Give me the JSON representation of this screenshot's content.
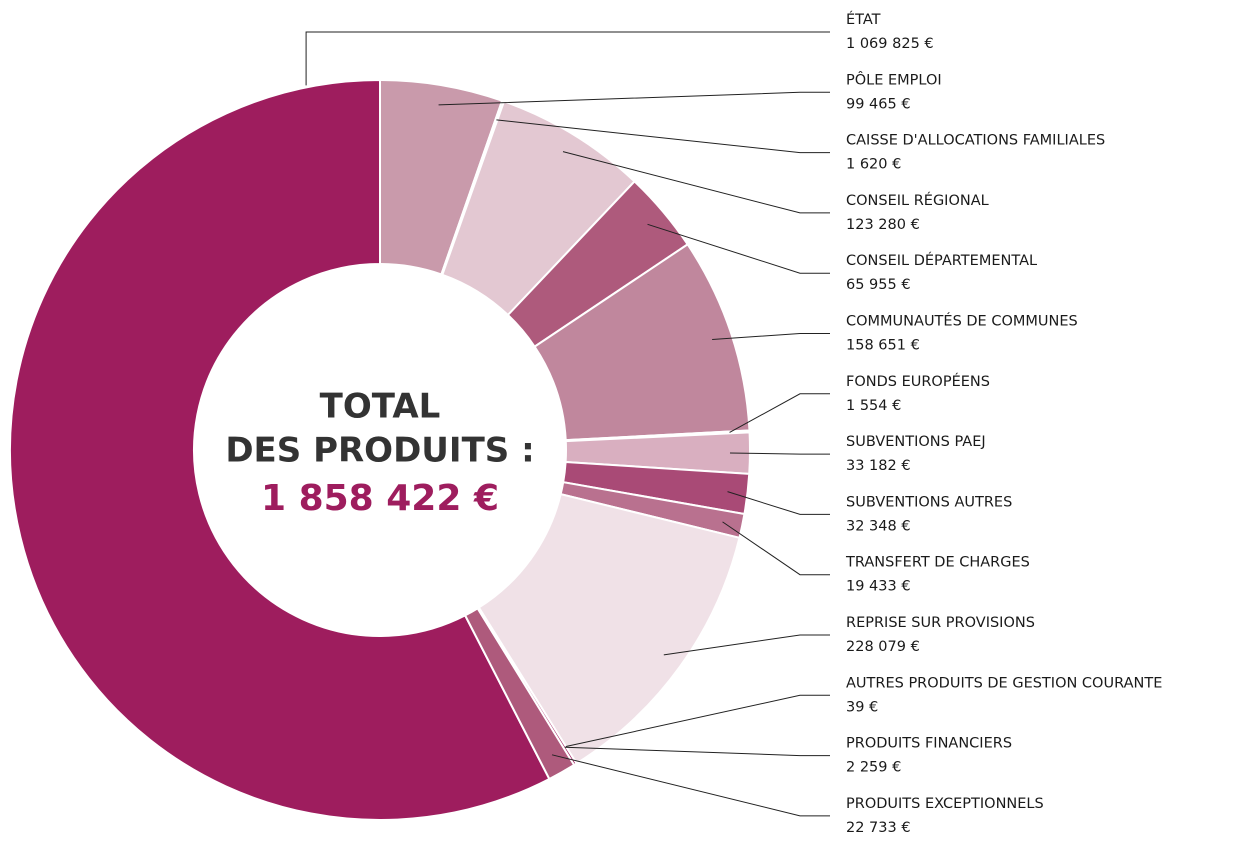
{
  "chart_data": {
    "type": "donut",
    "categories": [
      "ÉTAT",
      "PÔLE EMPLOI",
      "CAISSE D'ALLOCATIONS FAMILIALES",
      "CONSEIL RÉGIONAL",
      "CONSEIL DÉPARTEMENTAL",
      "COMMUNAUTÉS DE COMMUNES",
      "FONDS EUROPÉENS",
      "SUBVENTIONS PAEJ",
      "SUBVENTIONS AUTRES",
      "TRANSFERT DE CHARGES",
      "REPRISE SUR PROVISIONS",
      "AUTRES PRODUITS DE GESTION COURANTE",
      "PRODUITS FINANCIERS",
      "PRODUITS EXCEPTIONNELS"
    ],
    "values": [
      1069825,
      99465,
      1620,
      123280,
      65955,
      158651,
      1554,
      33182,
      32348,
      19433,
      228079,
      39,
      2259,
      22733
    ],
    "value_labels": [
      "1 069 825 €",
      "99 465 €",
      "1 620 €",
      "123 280 €",
      "65 955  €",
      "158 651 €",
      "1 554 €",
      "33 182 €",
      "32 348  €",
      "19 433 €",
      "228 079 €",
      "39 €",
      "2 259 €",
      "22 733 €"
    ],
    "colors": [
      "#9e1d5e",
      "#c99aab",
      "#9e1d5e",
      "#e3c8d2",
      "#ae5a7c",
      "#c0879d",
      "#9e1d5e",
      "#d9afc0",
      "#a94a76",
      "#b9718f",
      "#f0e1e7",
      "#f5eef1",
      "#9e1d5e",
      "#ae5a7c"
    ],
    "center_text": [
      "TOTAL",
      "DES PRODUITS :"
    ],
    "center_total": "1 858 422 €"
  }
}
